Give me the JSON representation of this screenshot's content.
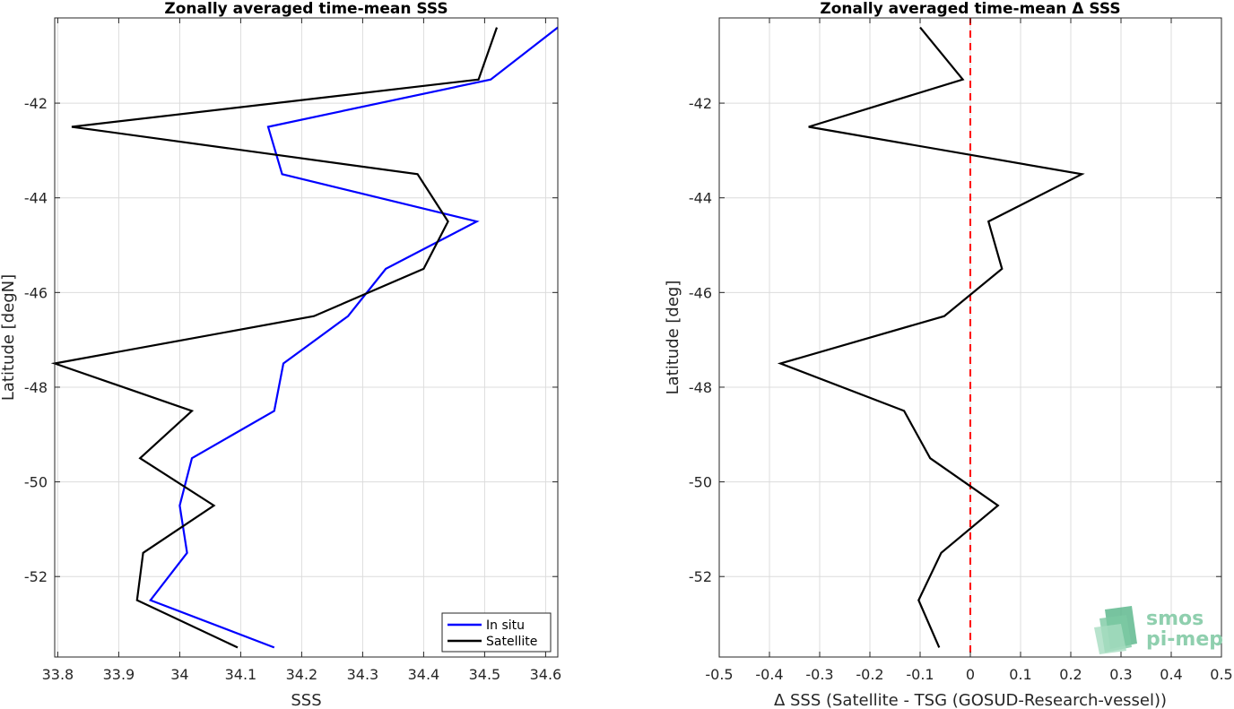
{
  "chart_data": [
    {
      "type": "line",
      "title": "Zonally averaged time-mean SSS",
      "xlabel": "SSS",
      "ylabel": "Latitude [degN]",
      "xlim": [
        33.795,
        34.62
      ],
      "ylim": [
        -53.7,
        -40.2
      ],
      "xticks": [
        33.8,
        33.9,
        34,
        34.1,
        34.2,
        34.3,
        34.4,
        34.5,
        34.6
      ],
      "xticklabels": [
        "33.8",
        "33.9",
        "34",
        "34.1",
        "34.2",
        "34.3",
        "34.4",
        "34.5",
        "34.6"
      ],
      "yticks": [
        -52,
        -50,
        -48,
        -46,
        -44,
        -42
      ],
      "yticklabels": [
        "-52",
        "-50",
        "-48",
        "-46",
        "-44",
        "-42"
      ],
      "grid": true,
      "legend_placement": "bottom-right",
      "series": [
        {
          "name": "In situ",
          "color": "#0000ff",
          "x": [
            34.62,
            34.51,
            34.145,
            34.168,
            34.487,
            34.338,
            34.276,
            34.17,
            34.155,
            34.02,
            34.0,
            34.012,
            33.952,
            34.155
          ],
          "y": [
            -40.4,
            -41.5,
            -42.5,
            -43.5,
            -44.5,
            -45.5,
            -46.5,
            -47.5,
            -48.5,
            -49.5,
            -50.5,
            -51.5,
            -52.5,
            -53.5
          ]
        },
        {
          "name": "Satellite",
          "color": "#000000",
          "x": [
            34.52,
            34.49,
            33.823,
            34.39,
            34.44,
            34.4,
            34.22,
            33.795,
            34.02,
            33.935,
            34.056,
            33.94,
            33.93,
            34.095
          ],
          "y": [
            -40.4,
            -41.5,
            -42.5,
            -43.5,
            -44.5,
            -45.5,
            -46.5,
            -47.5,
            -48.5,
            -49.5,
            -50.5,
            -51.5,
            -52.5,
            -53.5
          ]
        }
      ]
    },
    {
      "type": "line",
      "title": "Zonally averaged time-mean Δ SSS",
      "xlabel": "Δ SSS (Satellite - TSG (GOSUD-Research-vessel))",
      "ylabel": "Latitude [deg]",
      "xlim": [
        -0.5,
        0.5
      ],
      "ylim": [
        -53.7,
        -40.2
      ],
      "xticks": [
        -0.5,
        -0.4,
        -0.3,
        -0.2,
        -0.1,
        0,
        0.1,
        0.2,
        0.3,
        0.4,
        0.5
      ],
      "xticklabels": [
        "-0.5",
        "-0.4",
        "-0.3",
        "-0.2",
        "-0.1",
        "0",
        "0.1",
        "0.2",
        "0.3",
        "0.4",
        "0.5"
      ],
      "yticks": [
        -52,
        -50,
        -48,
        -46,
        -44,
        -42
      ],
      "yticklabels": [
        "-52",
        "-50",
        "-48",
        "-46",
        "-44",
        "-42"
      ],
      "grid": true,
      "reference_line": {
        "x": 0,
        "color": "#ff0000",
        "style": "dashed"
      },
      "series": [
        {
          "color": "#000000",
          "x": [
            -0.1,
            -0.015,
            -0.322,
            0.222,
            0.036,
            0.063,
            -0.052,
            -0.378,
            -0.132,
            -0.08,
            0.055,
            -0.058,
            -0.103,
            -0.062
          ],
          "y": [
            -40.4,
            -41.5,
            -42.5,
            -43.5,
            -44.5,
            -45.5,
            -46.5,
            -47.5,
            -48.5,
            -49.5,
            -50.5,
            -51.5,
            -52.5,
            -53.5
          ]
        }
      ]
    }
  ],
  "logo": {
    "line1": "smos",
    "line2": "pi-mep"
  }
}
